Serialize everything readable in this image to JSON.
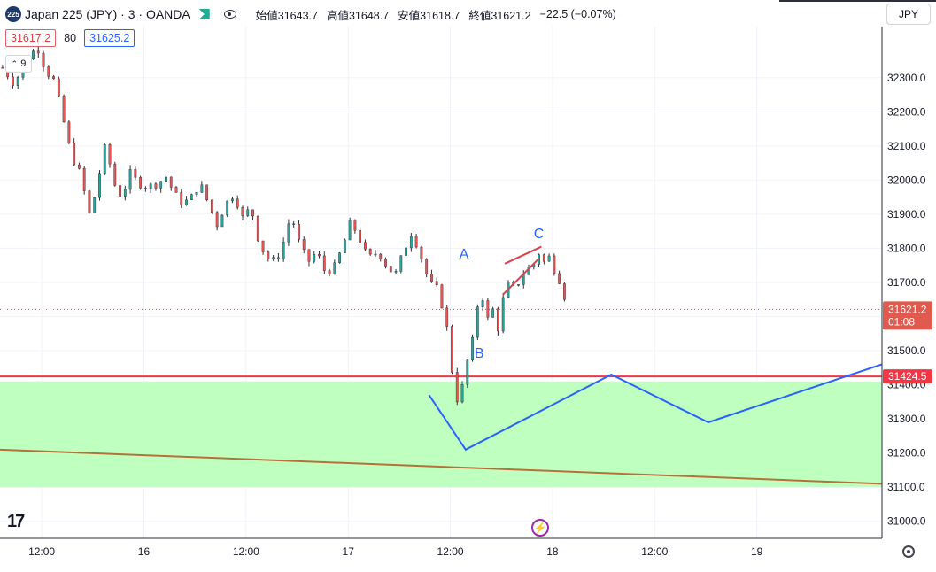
{
  "header": {
    "symbol_badge": "225",
    "title": "Japan 225 (JPY) · 3 · OANDA",
    "open_label": "始値",
    "open": "31643.7",
    "high_label": "高値",
    "high": "31648.7",
    "low_label": "安値",
    "low": "31618.7",
    "close_label": "終値",
    "close": "31621.2",
    "change": "−22.5 (−0.07%)"
  },
  "trade": {
    "sell": "31617.2",
    "spread": "80",
    "buy": "31625.2"
  },
  "collapse_label": "9",
  "currency": "JPY",
  "colors": {
    "up": "#26a69a",
    "down": "#ef5350",
    "zone": "#bfffbf",
    "resistance": "#f23645",
    "trend": "#b5713a",
    "wave": "#2962ff",
    "price_tag": "#e05a4f"
  },
  "icons": [
    "favorite-flag-icon",
    "eye-icon",
    "tradingview-logo-icon",
    "flash-icon",
    "settings-gear-icon"
  ],
  "chart_data": {
    "type": "candlestick",
    "symbol": "Japan 225 (JPY)",
    "timeframe": "3",
    "ylim": [
      30950,
      32450
    ],
    "y_ticks": [
      "32300.0",
      "32200.0",
      "32100.0",
      "32000.0",
      "31900.0",
      "31800.0",
      "31700.0",
      "31600.0",
      "31500.0",
      "31400.0",
      "31300.0",
      "31200.0",
      "31100.0",
      "31000.0"
    ],
    "y_tick_values": [
      32300,
      32200,
      32100,
      32000,
      31900,
      31800,
      31700,
      31600,
      31500,
      31400,
      31300,
      31200,
      31100,
      31000
    ],
    "x_ticks": [
      "12:00",
      "16",
      "12:00",
      "17",
      "12:00",
      "18",
      "12:00",
      "19"
    ],
    "x_tick_hours": [
      -12,
      0,
      12,
      24,
      36,
      48,
      60,
      72
    ],
    "x_range_hours": [
      -16.9,
      86.7
    ],
    "price_path": [
      [
        -16.6,
        32330
      ],
      [
        -15.2,
        32280
      ],
      [
        -14,
        32350
      ],
      [
        -12.5,
        32390
      ],
      [
        -11.5,
        32320
      ],
      [
        -10.5,
        32290
      ],
      [
        -9.5,
        32180
      ],
      [
        -8.5,
        32070
      ],
      [
        -7.5,
        32020
      ],
      [
        -6.3,
        31890
      ],
      [
        -5.3,
        32010
      ],
      [
        -4.5,
        32105
      ],
      [
        -3.5,
        31990
      ],
      [
        -2.6,
        31950
      ],
      [
        -1.6,
        32020
      ],
      [
        -0.6,
        31990
      ],
      [
        0.4,
        31980
      ],
      [
        1.6,
        31990
      ],
      [
        2.6,
        32010
      ],
      [
        3.6,
        31960
      ],
      [
        4.6,
        31930
      ],
      [
        5.6,
        31950
      ],
      [
        6.6,
        31990
      ],
      [
        7.6,
        31930
      ],
      [
        8.6,
        31870
      ],
      [
        9.6,
        31930
      ],
      [
        10.6,
        31960
      ],
      [
        11.6,
        31890
      ],
      [
        12.6,
        31920
      ],
      [
        13.6,
        31810
      ],
      [
        14.6,
        31770
      ],
      [
        15.5,
        31760
      ],
      [
        16.3,
        31810
      ],
      [
        17.3,
        31900
      ],
      [
        18.3,
        31810
      ],
      [
        19.3,
        31760
      ],
      [
        20.3,
        31790
      ],
      [
        21.3,
        31730
      ],
      [
        22.3,
        31740
      ],
      [
        23.3,
        31800
      ],
      [
        24.3,
        31880
      ],
      [
        25.3,
        31830
      ],
      [
        26.3,
        31770
      ],
      [
        27.5,
        31790
      ],
      [
        28.5,
        31750
      ],
      [
        29.5,
        31720
      ],
      [
        30.5,
        31790
      ],
      [
        31.5,
        31850
      ],
      [
        32.5,
        31780
      ],
      [
        33.5,
        31700
      ],
      [
        34.5,
        31680
      ],
      [
        35.5,
        31590
      ],
      [
        36,
        31470
      ],
      [
        36.5,
        31400
      ],
      [
        37,
        31330
      ],
      [
        37.5,
        31410
      ],
      [
        38,
        31470
      ],
      [
        38.5,
        31510
      ],
      [
        39,
        31600
      ],
      [
        39.5,
        31680
      ],
      [
        40,
        31640
      ],
      [
        40.5,
        31580
      ],
      [
        41,
        31620
      ],
      [
        41.5,
        31550
      ],
      [
        42,
        31630
      ],
      [
        42.5,
        31680
      ],
      [
        43,
        31700
      ],
      [
        43.5,
        31680
      ],
      [
        44,
        31700
      ],
      [
        44.5,
        31720
      ],
      [
        45,
        31750
      ],
      [
        45.5,
        31730
      ],
      [
        46,
        31770
      ],
      [
        46.5,
        31790
      ],
      [
        47,
        31760
      ],
      [
        47.5,
        31780
      ],
      [
        48,
        31750
      ],
      [
        48.5,
        31720
      ],
      [
        49,
        31700
      ],
      [
        49.5,
        31650
      ],
      [
        50,
        31621
      ]
    ],
    "last_price": 31621.2,
    "last_price_label": "31621.2",
    "countdown": "01:08",
    "resistance": {
      "value": 31424.5,
      "label": "31424.5"
    },
    "zone": {
      "from": 31100,
      "to": 31410
    },
    "trendline": [
      [
        -16.9,
        31210
      ],
      [
        86.7,
        31110
      ]
    ],
    "projection": [
      [
        33.5,
        31370
      ],
      [
        37.8,
        31210
      ],
      [
        54.9,
        31430
      ],
      [
        66.3,
        31290
      ],
      [
        86.7,
        31460
      ]
    ],
    "wedge_lines": [
      [
        [
          42.4,
          31755
        ],
        [
          46.7,
          31805
        ]
      ],
      [
        [
          42.2,
          31665
        ],
        [
          46.4,
          31770
        ]
      ]
    ],
    "wave_labels": [
      {
        "text": "A",
        "x": 37.6,
        "y": 31770
      },
      {
        "text": "B",
        "x": 39.4,
        "y": 31480
      },
      {
        "text": "C",
        "x": 46.4,
        "y": 31830
      }
    ]
  }
}
